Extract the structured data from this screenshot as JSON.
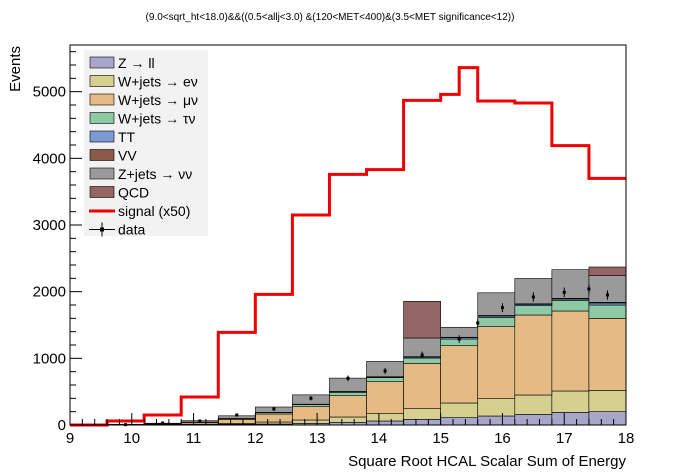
{
  "chart_data": {
    "type": "bar",
    "title": "(9.0<sqrt_ht<18.0)&&((0.5<allj<3.0) &(120<MET<400)&(3.5<MET significance<12))",
    "xlabel": "Square Root HCAL Scalar Sum of Energy",
    "ylabel": "Events",
    "xlim": [
      9,
      18
    ],
    "ylim": [
      0,
      5700
    ],
    "x_ticks": [
      "9",
      "10",
      "11",
      "12",
      "13",
      "14",
      "15",
      "16",
      "17",
      "18"
    ],
    "y_ticks": [
      "0",
      "1000",
      "2000",
      "3000",
      "4000",
      "5000"
    ],
    "bin_edges": [
      9.0,
      9.6,
      10.2,
      10.8,
      11.4,
      12.0,
      12.6,
      13.2,
      13.8,
      14.4,
      15.0,
      15.6,
      16.2,
      16.8,
      17.4,
      18.0
    ],
    "stack": [
      {
        "name": "Z → ll",
        "color": "#a7a6c9",
        "values": [
          0,
          0,
          2,
          5,
          10,
          15,
          25,
          40,
          60,
          85,
          110,
          135,
          160,
          190,
          200
        ]
      },
      {
        "name": "W+jets → eν",
        "color": "#d6d090",
        "values": [
          0,
          0,
          3,
          8,
          15,
          30,
          50,
          80,
          110,
          160,
          220,
          260,
          290,
          320,
          320
        ]
      },
      {
        "name": "W+jets → μν",
        "color": "#e5bb85",
        "values": [
          0,
          5,
          10,
          25,
          60,
          120,
          200,
          320,
          480,
          680,
          860,
          1080,
          1200,
          1200,
          1080
        ]
      },
      {
        "name": "W+jets → τν",
        "color": "#8ec9a6",
        "values": [
          0,
          0,
          2,
          5,
          10,
          20,
          30,
          50,
          60,
          80,
          100,
          140,
          140,
          160,
          200
        ]
      },
      {
        "name": "TT",
        "color": "#7b9bd3",
        "values": [
          0,
          0,
          0,
          1,
          2,
          3,
          5,
          10,
          10,
          15,
          20,
          20,
          20,
          20,
          30
        ]
      },
      {
        "name": "VV",
        "color": "#8a5a4a",
        "values": [
          0,
          0,
          0,
          0,
          1,
          2,
          2,
          3,
          4,
          5,
          6,
          8,
          8,
          10,
          10
        ]
      },
      {
        "name": "Z+jets → νν",
        "color": "#9a9a9a",
        "values": [
          0,
          5,
          10,
          20,
          40,
          80,
          140,
          200,
          230,
          280,
          150,
          340,
          380,
          430,
          400
        ]
      },
      {
        "name": "QCD",
        "color": "#946565",
        "values": [
          0,
          0,
          0,
          0,
          0,
          0,
          0,
          0,
          0,
          550,
          0,
          0,
          0,
          0,
          130
        ]
      }
    ],
    "signal": {
      "name": "signal (x50)",
      "color": "#ee0000",
      "values": [
        0,
        60,
        150,
        420,
        1390,
        1960,
        3150,
        3760,
        3830,
        4870,
        4960,
        5360,
        4860,
        4830,
        4190,
        3700,
        3240
      ]
    },
    "signal_edges": [
      9.0,
      9.6,
      10.2,
      10.8,
      11.4,
      12.0,
      12.6,
      13.2,
      13.8,
      14.4,
      15.0,
      15.3,
      15.6,
      16.2,
      16.8,
      17.4,
      18.0
    ],
    "data": {
      "name": "data",
      "color": "#000000",
      "values": [
        0,
        5,
        30,
        60,
        150,
        240,
        400,
        700,
        810,
        1050,
        1290,
        1530,
        1760,
        1920,
        1990,
        2040,
        1950
      ]
    },
    "data_x": [
      9.3,
      9.9,
      10.5,
      11.1,
      11.7,
      12.3,
      12.9,
      13.5,
      14.1,
      14.7,
      15.3,
      15.6,
      16.0,
      16.5,
      17.0,
      17.4,
      17.7
    ],
    "legend": [
      "Z → ll",
      "W+jets → eν",
      "W+jets → μν",
      "W+jets → τν",
      "TT",
      "VV",
      "Z+jets → νν",
      "QCD",
      "signal (x50)",
      "data"
    ],
    "legend_position": "top-left",
    "grid": false
  }
}
